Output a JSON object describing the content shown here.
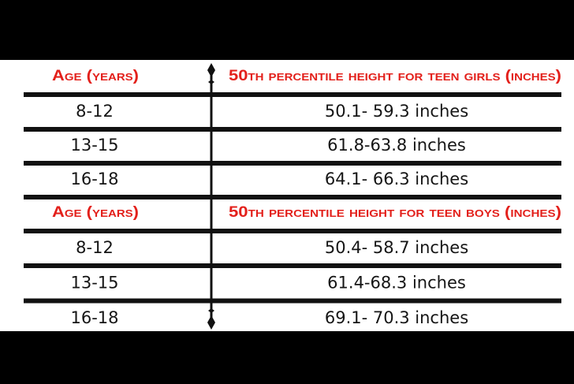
{
  "sections": [
    {
      "header": [
        "Age (years)",
        "50th percentile height for teen girls (inches)"
      ],
      "rows": [
        [
          "8-12",
          "50.1- 59.3 inches"
        ],
        [
          "13-15",
          "61.8-63.8 inches"
        ],
        [
          "16-18",
          "64.1- 66.3 inches"
        ]
      ]
    },
    {
      "header": [
        "Age (years)",
        "50th percentile height for teen boys (inches)"
      ],
      "rows": [
        [
          "8-12",
          "50.4- 58.7 inches"
        ],
        [
          "13-15",
          "61.4-68.3 inches"
        ],
        [
          "16-18",
          "69.1- 70.3 inches"
        ]
      ]
    }
  ]
}
